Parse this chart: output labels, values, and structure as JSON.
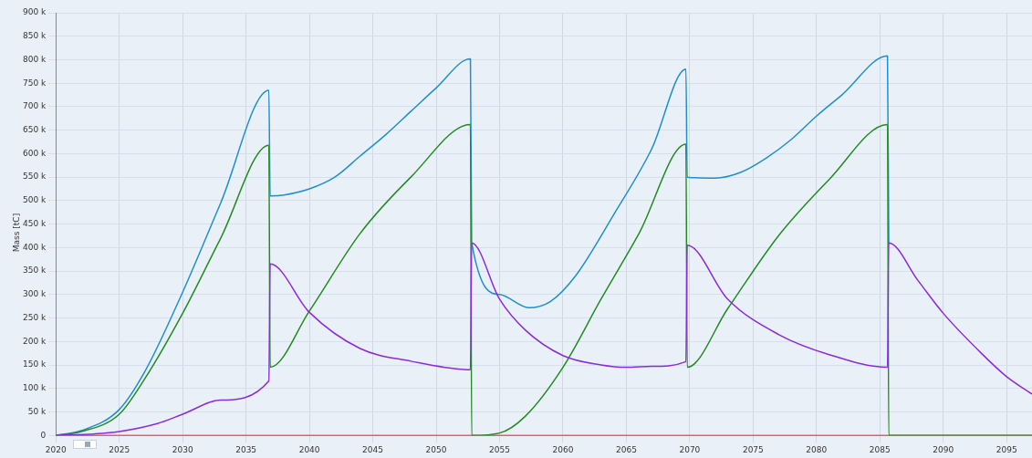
{
  "chart_data": {
    "type": "line",
    "ylabel": "Mass [tC]",
    "xlim": [
      2020,
      2097
    ],
    "xticks": [
      2020,
      2025,
      2030,
      2035,
      2040,
      2045,
      2050,
      2055,
      2060,
      2065,
      2070,
      2075,
      2080,
      2085,
      2090,
      2095
    ],
    "ylim": [
      0,
      900000
    ],
    "yticks": [
      0,
      {
        "value": 50000,
        "label": "50 k"
      },
      {
        "value": 100000,
        "label": "100 k"
      },
      {
        "value": 150000,
        "label": "150 k"
      },
      {
        "value": 200000,
        "label": "200 k"
      },
      {
        "value": 250000,
        "label": "250 k"
      },
      {
        "value": 300000,
        "label": "300 k"
      },
      {
        "value": 350000,
        "label": "350 k"
      },
      {
        "value": 400000,
        "label": "400 k"
      },
      {
        "value": 450000,
        "label": "450 k"
      },
      {
        "value": 500000,
        "label": "500 k"
      },
      {
        "value": 550000,
        "label": "550 k"
      },
      {
        "value": 600000,
        "label": "600 k"
      },
      {
        "value": 650000,
        "label": "650 k"
      },
      {
        "value": 700000,
        "label": "700 k"
      },
      {
        "value": 750000,
        "label": "750 k"
      },
      {
        "value": 800000,
        "label": "800 k"
      },
      {
        "value": 850000,
        "label": "850 k"
      },
      {
        "value": 900000,
        "label": "900 k"
      }
    ],
    "grid": true,
    "legend": false,
    "marker": "none",
    "line_style": "solid",
    "series": [
      {
        "color": "#e8606a",
        "x": [
          2020,
          2097
        ],
        "values": [
          0,
          0
        ]
      },
      {
        "color": "#1f8fcf",
        "x": [
          2020,
          2022,
          2025,
          2027,
          2030,
          2033,
          2036.8,
          2036.9,
          2038,
          2040,
          2042,
          2044,
          2046,
          2048,
          2050,
          2052.7,
          2052.8,
          2055,
          2057.3,
          2059,
          2061,
          2064,
          2067,
          2069.7,
          2069.8,
          2072,
          2074,
          2076,
          2078,
          2080,
          2082,
          2085.6,
          2085.7
        ],
        "values": [
          0,
          10000,
          55000,
          135000,
          305000,
          495000,
          735000,
          510000,
          512000,
          525000,
          550000,
          595000,
          640000,
          690000,
          740000,
          802000,
          410000,
          300000,
          272000,
          285000,
          340000,
          470000,
          610000,
          780000,
          550000,
          548000,
          560000,
          590000,
          630000,
          680000,
          725000,
          808000,
          410000
        ]
      },
      {
        "color": "#228b22",
        "x": [
          2020,
          2022,
          2025,
          2027,
          2030,
          2033,
          2036.8,
          2036.9,
          2040,
          2044,
          2048,
          2052.7,
          2052.8,
          2055,
          2057,
          2060,
          2063,
          2066,
          2069.7,
          2069.8,
          2073,
          2077,
          2081,
          2085.6,
          2085.7,
          2097
        ],
        "values": [
          0,
          8000,
          45000,
          120000,
          260000,
          420000,
          618000,
          145000,
          265000,
          430000,
          550000,
          662000,
          0,
          5000,
          40000,
          145000,
          290000,
          430000,
          620000,
          145000,
          270000,
          425000,
          545000,
          662000,
          0,
          0
        ]
      },
      {
        "color": "#8a2be2",
        "x": [
          2020,
          2023,
          2025,
          2028,
          2030,
          2033,
          2036.8,
          2036.9,
          2040,
          2044,
          2048,
          2052.7,
          2052.8,
          2055,
          2057,
          2060,
          2063,
          2065,
          2067,
          2069.7,
          2069.8,
          2073,
          2077,
          2081,
          2085.6,
          2085.7,
          2088,
          2090,
          2093,
          2095,
          2097
        ],
        "values": [
          0,
          3000,
          8000,
          25000,
          45000,
          75000,
          116000,
          365000,
          262000,
          185000,
          158000,
          140000,
          410000,
          290000,
          225000,
          170000,
          150000,
          145000,
          147000,
          157000,
          405000,
          290000,
          215000,
          172000,
          145000,
          410000,
          330000,
          260000,
          175000,
          125000,
          88000
        ]
      }
    ]
  }
}
